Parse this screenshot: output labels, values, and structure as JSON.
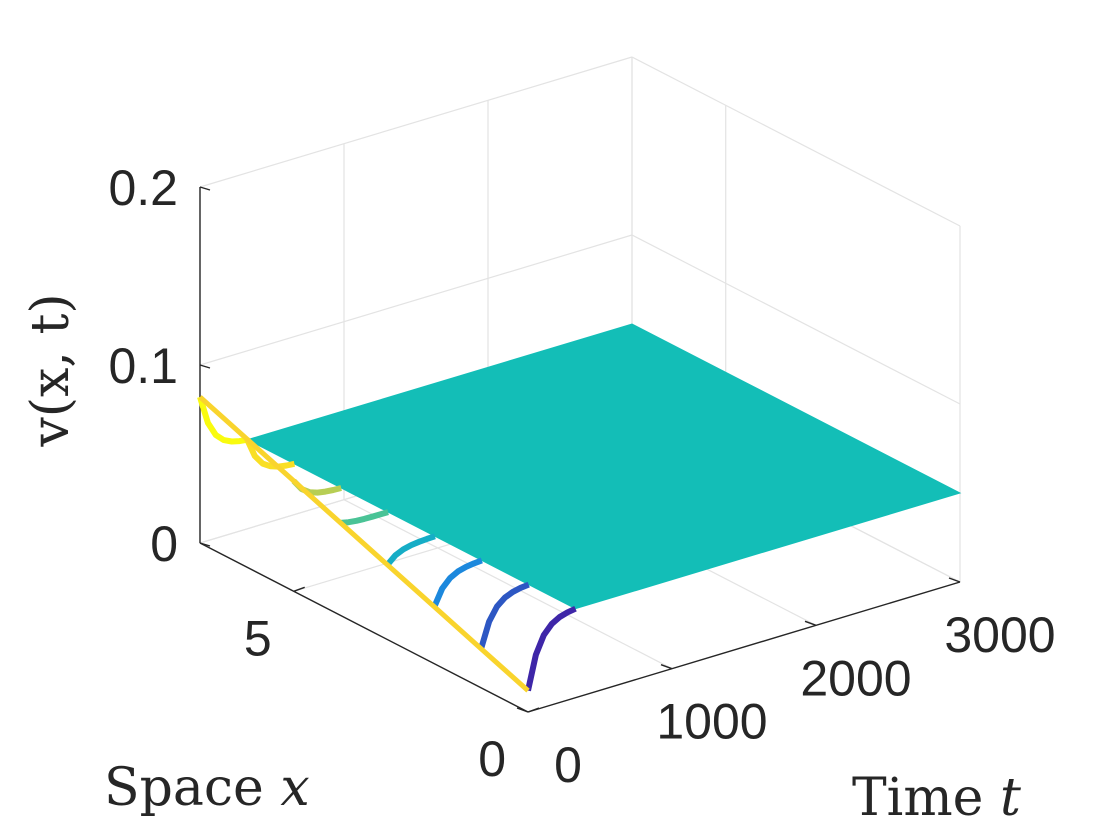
{
  "chart_data": {
    "type": "surface",
    "title": "",
    "xlabel": {
      "prefix": "Time ",
      "var": "t"
    },
    "ylabel": {
      "prefix": "Space ",
      "var": "x"
    },
    "zlabel": "v(x, t)",
    "xlim": [
      0,
      3000
    ],
    "ylim": [
      0,
      7
    ],
    "zlim": [
      0,
      0.2
    ],
    "xticks": [
      0,
      1000,
      2000,
      3000
    ],
    "yticks": [
      0,
      5
    ],
    "zticks": [
      0,
      0.1,
      0.2
    ],
    "ztick_labels": [
      "0",
      "0.1",
      "0.2"
    ],
    "grid": true,
    "colormap": "parula",
    "surface": {
      "t_transient_end": 330,
      "steady_value": 0.05,
      "initial_profile": [
        {
          "x": 0,
          "v": 0.012
        },
        {
          "x": 1,
          "v": 0.022
        },
        {
          "x": 2,
          "v": 0.032
        },
        {
          "x": 3,
          "v": 0.042
        },
        {
          "x": 4,
          "v": 0.052
        },
        {
          "x": 5,
          "v": 0.062
        },
        {
          "x": 6,
          "v": 0.072
        },
        {
          "x": 7,
          "v": 0.082
        }
      ]
    },
    "colors": {
      "steady": "#13BEB7",
      "low": "#3E26A8",
      "mid_low": "#1A8DE0",
      "high": "#F9D42D",
      "highest": "#F9FB0E"
    }
  }
}
